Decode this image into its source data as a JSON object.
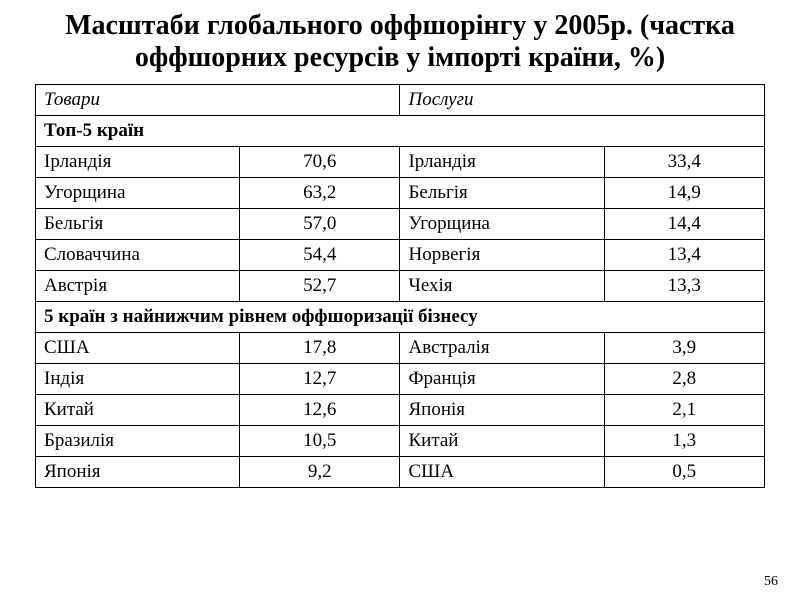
{
  "title": "Масштаби глобального оффшорінгу у 2005р. (частка оффшорних ресурсів у імпорті країни, %)",
  "header": {
    "goods": "Товари",
    "services": "Послуги"
  },
  "sections": {
    "top5": "Топ-5 країн",
    "bottom5": "5 країн з найнижчим рівнем оффшоризації бізнесу"
  },
  "top5_rows": [
    {
      "gc": "Ірландія",
      "gv": "70,6",
      "sc": "Ірландія",
      "sv": "33,4"
    },
    {
      "gc": "Угорщина",
      "gv": "63,2",
      "sc": "Бельгія",
      "sv": "14,9"
    },
    {
      "gc": "Бельгія",
      "gv": "57,0",
      "sc": "Угорщина",
      "sv": "14,4"
    },
    {
      "gc": "Словаччина",
      "gv": "54,4",
      "sc": "Норвегія",
      "sv": "13,4"
    },
    {
      "gc": "Австрія",
      "gv": "52,7",
      "sc": "Чехія",
      "sv": "13,3"
    }
  ],
  "bottom5_rows": [
    {
      "gc": "США",
      "gv": "17,8",
      "sc": "Австралія",
      "sv": "3,9"
    },
    {
      "gc": "Індія",
      "gv": "12,7",
      "sc": "Франція",
      "sv": "2,8"
    },
    {
      "gc": "Китай",
      "gv": "12,6",
      "sc": "Японія",
      "sv": "2,1"
    },
    {
      "gc": "Бразилія",
      "gv": "10,5",
      "sc": "Китай",
      "sv": "1,3"
    },
    {
      "gc": "Японія",
      "gv": "9,2",
      "sc": "США",
      "sv": "0,5"
    }
  ],
  "page_number": "56",
  "style": {
    "title_fontsize": 28,
    "cell_fontsize": 19,
    "border_color": "#000000",
    "background_color": "#ffffff",
    "text_color": "#000000",
    "font_family": "Times New Roman"
  }
}
